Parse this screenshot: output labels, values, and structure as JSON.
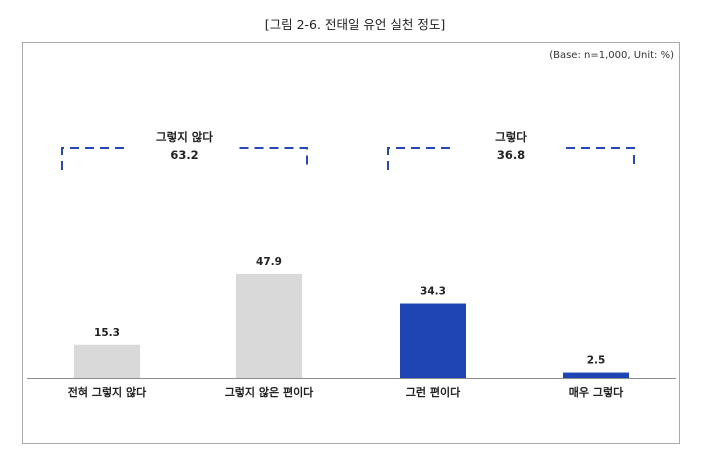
{
  "figure_title": "[그림 2-6. 전태일 유언 실천 정도]",
  "base_note": "(Base:  n=1,000,  Unit:  %)",
  "colors": {
    "neg": "#d9d9d9",
    "pos": "#1f45b4",
    "bracket": "#2747b5"
  },
  "chart_data": {
    "type": "bar",
    "title": "[그림 2-6. 전태일 유언 실천 정도]",
    "xlabel": "",
    "ylabel": "",
    "ylim": [
      0,
      60
    ],
    "categories": [
      "전혀 그렇지 않다",
      "그렇지 않은 편이다",
      "그런 편이다",
      "매우 그렇다"
    ],
    "values": [
      15.3,
      47.9,
      34.3,
      2.5
    ],
    "value_labels": [
      "15.3",
      "47.9",
      "34.3",
      "2.5"
    ],
    "bar_colors": [
      "#d9d9d9",
      "#d9d9d9",
      "#1f45b4",
      "#1f45b4"
    ],
    "groups": [
      {
        "label": "그렇지 않다",
        "value": "63.2",
        "categories": [
          0,
          1
        ]
      },
      {
        "label": "그렇다",
        "value": "36.8",
        "categories": [
          2,
          3
        ]
      }
    ],
    "grid": false
  }
}
